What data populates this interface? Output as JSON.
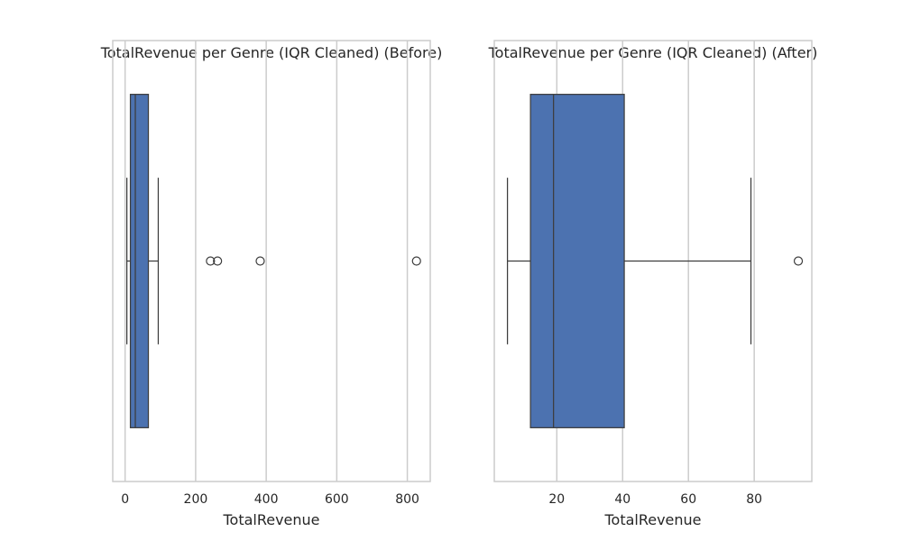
{
  "chart_data": [
    {
      "type": "box",
      "orientation": "horizontal",
      "title": "TotalRevenue per Genre (IQR Cleaned) (Before)",
      "xlabel": "TotalRevenue",
      "ylabel": "",
      "xlim": [
        -35,
        865
      ],
      "xticks": [
        0,
        200,
        400,
        600,
        800
      ],
      "xtick_labels": [
        "0",
        "200",
        "400",
        "600",
        "800"
      ],
      "grid": "vertical",
      "box_color": "#4c72b0",
      "line_color": "#3d3d3d",
      "series": [
        {
          "whisker_low": 5,
          "q1": 15,
          "median": 29,
          "q3": 66,
          "whisker_high": 94,
          "outliers": [
            242,
            262,
            383,
            826
          ]
        }
      ]
    },
    {
      "type": "box",
      "orientation": "horizontal",
      "title": "TotalRevenue per Genre (IQR Cleaned) (After)",
      "xlabel": "TotalRevenue",
      "ylabel": "",
      "xlim": [
        1,
        97.5
      ],
      "xticks": [
        20,
        40,
        60,
        80
      ],
      "xtick_labels": [
        "20",
        "40",
        "60",
        "80"
      ],
      "grid": "vertical",
      "box_color": "#4c72b0",
      "line_color": "#3d3d3d",
      "series": [
        {
          "whisker_low": 5,
          "q1": 12,
          "median": 19,
          "q3": 40.5,
          "whisker_high": 79,
          "outliers": [
            93.4
          ]
        }
      ]
    }
  ]
}
